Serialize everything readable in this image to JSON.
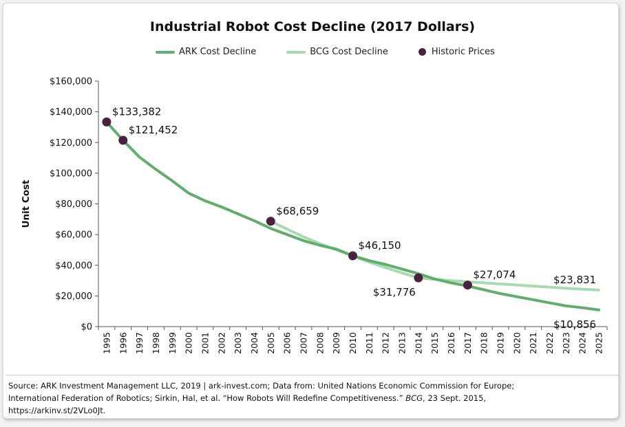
{
  "chart_data": {
    "type": "line",
    "title": "Industrial Robot Cost Decline (2017 Dollars)",
    "ylabel": "Unit Cost",
    "xlabel": "",
    "ylim": [
      0,
      160000
    ],
    "yticks": [
      0,
      20000,
      40000,
      60000,
      80000,
      100000,
      120000,
      140000,
      160000
    ],
    "ytick_labels": [
      "$0",
      "$20,000",
      "$40,000",
      "$60,000",
      "$80,000",
      "$100,000",
      "$120,000",
      "$140,000",
      "$160,000"
    ],
    "x": [
      1995,
      1996,
      1997,
      1998,
      1999,
      2000,
      2001,
      2002,
      2003,
      2004,
      2005,
      2006,
      2007,
      2008,
      2009,
      2010,
      2011,
      2012,
      2013,
      2014,
      2015,
      2016,
      2017,
      2018,
      2019,
      2020,
      2021,
      2022,
      2023,
      2024,
      2025
    ],
    "grid": false,
    "legend_position": "top",
    "series": [
      {
        "name": "ARK Cost Decline",
        "color": "#5fae6b",
        "kind": "line",
        "x": [
          1995,
          1996,
          1997,
          1998,
          1999,
          2000,
          2001,
          2002,
          2003,
          2004,
          2005,
          2006,
          2007,
          2008,
          2009,
          2010,
          2011,
          2012,
          2013,
          2014,
          2015,
          2016,
          2017,
          2018,
          2019,
          2020,
          2021,
          2022,
          2023,
          2024,
          2025
        ],
        "values": [
          133382,
          121452,
          110500,
          102500,
          95000,
          87000,
          82000,
          78000,
          73500,
          69000,
          64000,
          60000,
          56000,
          53000,
          50500,
          46150,
          43000,
          40500,
          37500,
          34500,
          31000,
          28500,
          26500,
          24000,
          21500,
          19500,
          17500,
          15500,
          13500,
          12300,
          10856
        ]
      },
      {
        "name": "BCG Cost Decline",
        "color": "#a9d9b0",
        "kind": "line",
        "x": [
          2005,
          2006,
          2007,
          2008,
          2009,
          2010,
          2011,
          2012,
          2013,
          2014,
          2015,
          2016,
          2017,
          2018,
          2019,
          2020,
          2021,
          2022,
          2023,
          2024,
          2025
        ],
        "values": [
          68659,
          63500,
          58500,
          54000,
          50000,
          46150,
          42000,
          38500,
          35000,
          31776,
          30800,
          30000,
          29200,
          28500,
          27800,
          27100,
          26400,
          25700,
          25000,
          24400,
          23831
        ]
      },
      {
        "name": "Historic Prices",
        "color": "#4b2142",
        "kind": "scatter",
        "x": [
          1995,
          1996,
          2005,
          2010,
          2014,
          2017
        ],
        "values": [
          133382,
          121452,
          68659,
          46150,
          31776,
          27074
        ]
      }
    ],
    "annotations": [
      {
        "text": "$133,382",
        "x": 1995,
        "y": 133382,
        "pos": "right-above"
      },
      {
        "text": "$121,452",
        "x": 1996,
        "y": 121452,
        "pos": "right-above"
      },
      {
        "text": "$68,659",
        "x": 2005,
        "y": 68659,
        "pos": "right-above"
      },
      {
        "text": "$46,150",
        "x": 2010,
        "y": 46150,
        "pos": "right-above"
      },
      {
        "text": "$31,776",
        "x": 2014,
        "y": 31776,
        "pos": "left-below"
      },
      {
        "text": "$27,074",
        "x": 2017,
        "y": 27074,
        "pos": "right-above"
      },
      {
        "text": "$23,831",
        "x": 2025,
        "y": 23831,
        "pos": "left-above"
      },
      {
        "text": "$10,856",
        "x": 2025,
        "y": 10856,
        "pos": "left-below"
      }
    ]
  },
  "source": {
    "line1": "Source: ARK Investment Management LLC, 2019 | ark-invest.com;  Data from: United Nations Economic Commission for Europe;",
    "line2a": "International Federation of Robotics; Sirkin, Hal, et al. “How Robots Will Redefine Competitiveness.” ",
    "line2b": "BCG",
    "line2c": ", 23 Sept. 2015,",
    "line3": "https://arkinv.st/2VLo0Jt."
  }
}
